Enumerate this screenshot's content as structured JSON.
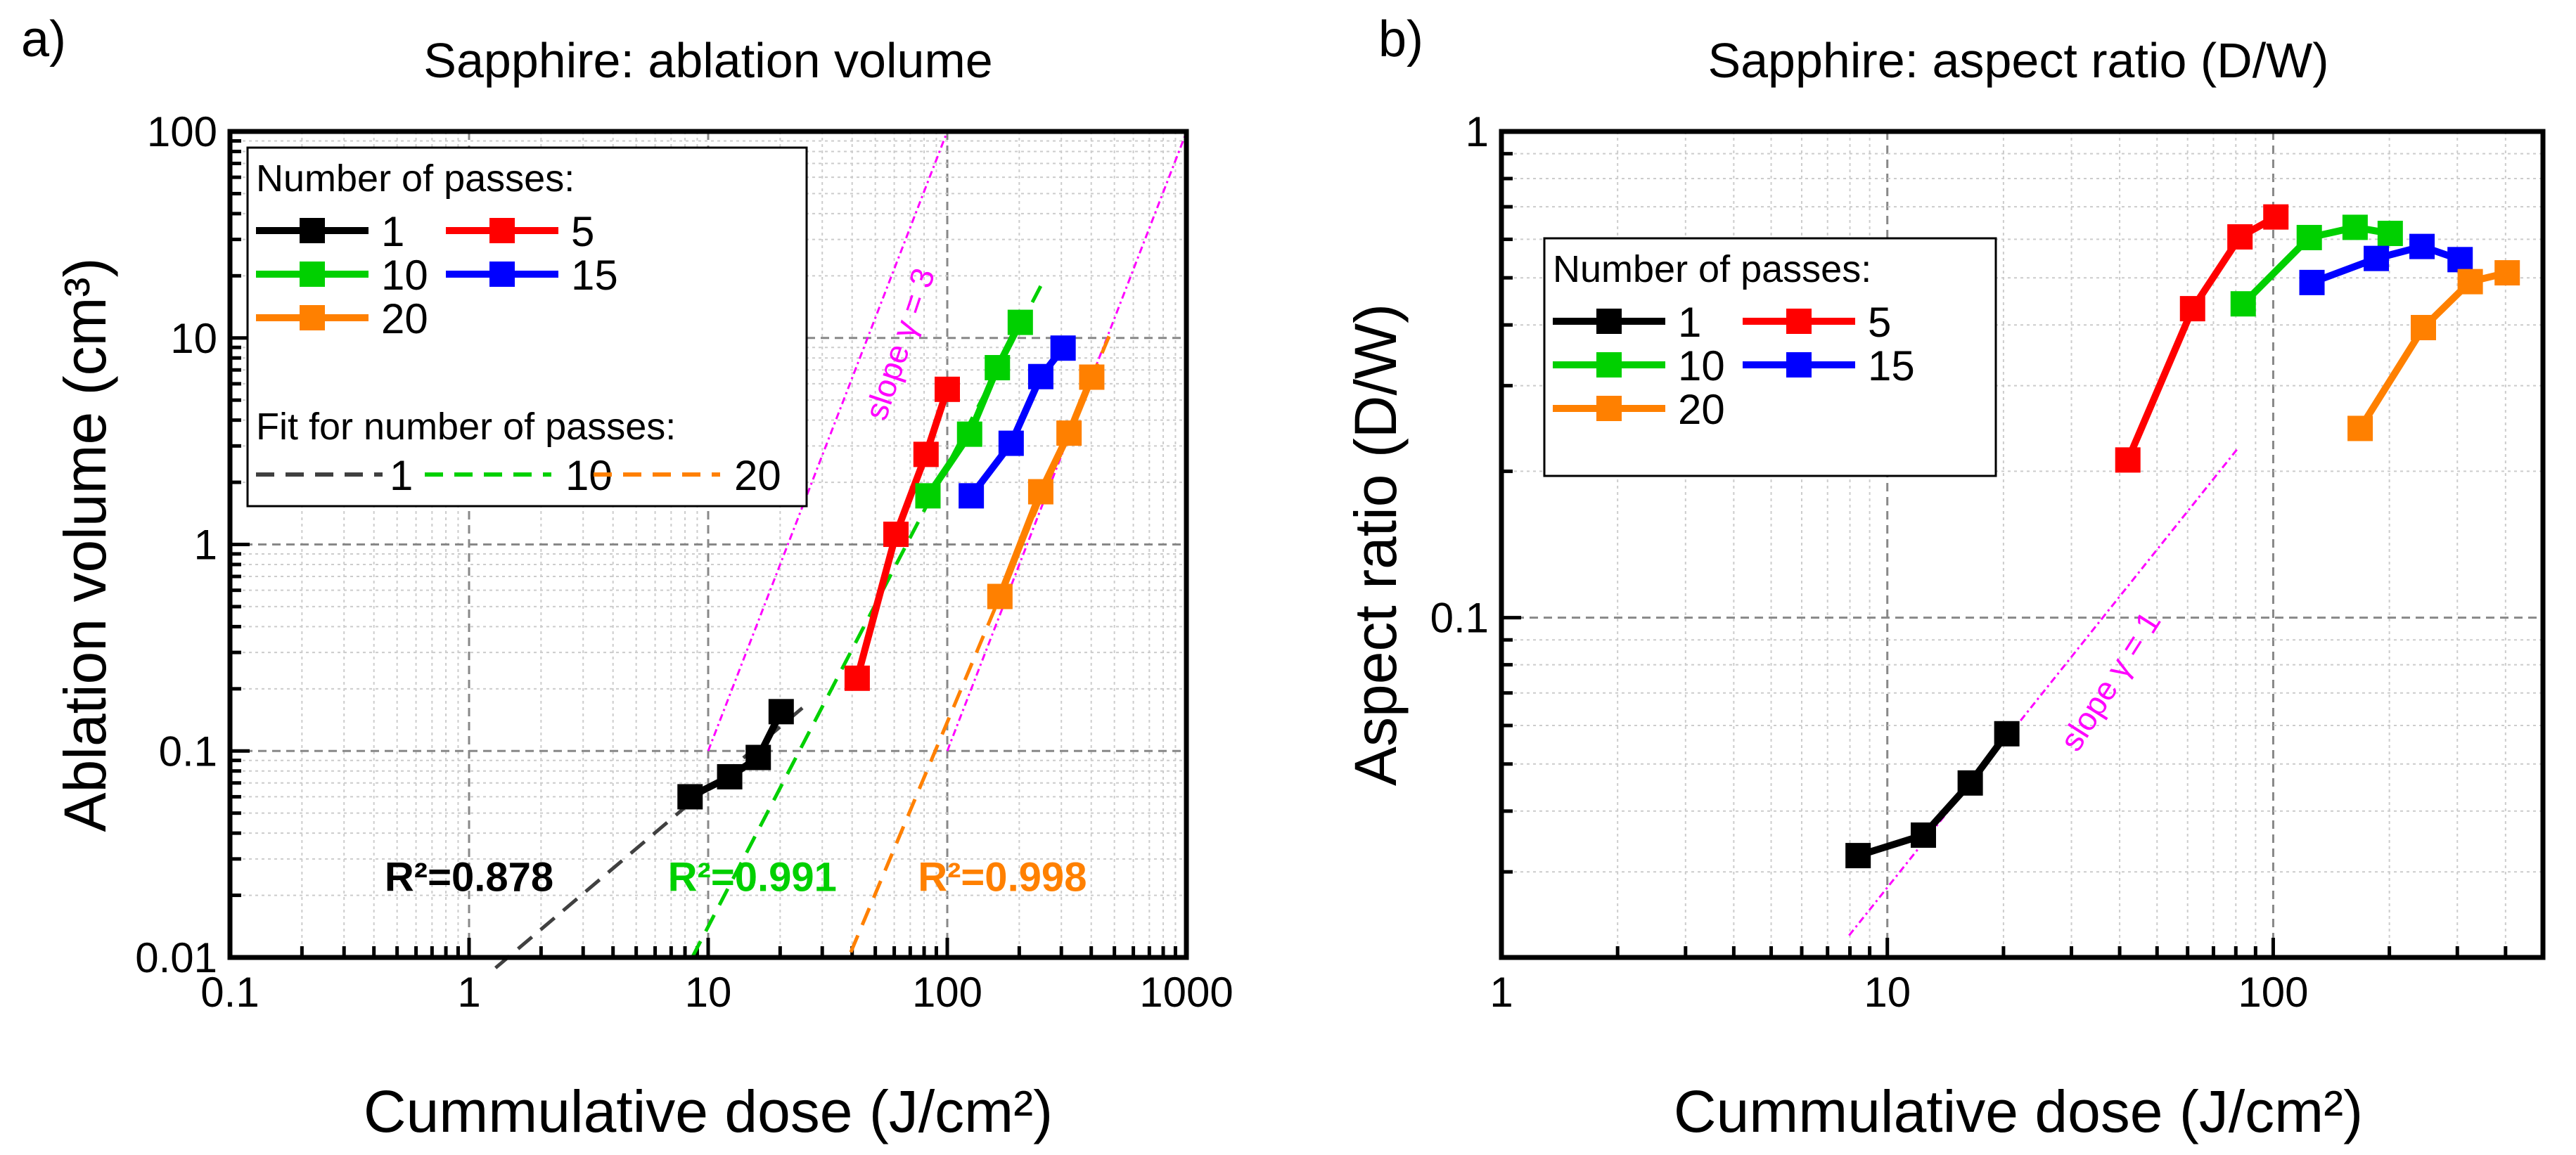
{
  "chart_data": [
    {
      "panel_label": "a)",
      "type": "line",
      "title": "Sapphire: ablation volume",
      "xlabel": "Cummulative dose (J/cm²)",
      "ylabel": "Ablation volume (cm³)",
      "xscale": "log",
      "yscale": "log",
      "xlim": [
        0.1,
        1000
      ],
      "ylim": [
        0.01,
        100
      ],
      "xticks": [
        "0.1",
        "1",
        "10",
        "100",
        "1000"
      ],
      "yticks": [
        "0.01",
        "0.1",
        "1",
        "10",
        "100"
      ],
      "grid": true,
      "legend": {
        "placement": "top-left",
        "title": "Number of passes:",
        "fit_title": "Fit for number of passes:",
        "fit_entries": [
          "1",
          "10",
          "20"
        ]
      },
      "series": [
        {
          "name": "1",
          "color": "#000000",
          "x": [
            8.4,
            12.3,
            16.2,
            20.2
          ],
          "y": [
            0.06,
            0.075,
            0.093,
            0.155
          ]
        },
        {
          "name": "5",
          "color": "#ff0000",
          "x": [
            42,
            61,
            81.5,
            100
          ],
          "y": [
            0.225,
            1.12,
            2.73,
            5.64
          ]
        },
        {
          "name": "10",
          "color": "#00d000",
          "x": [
            83,
            124,
            162,
            202
          ],
          "y": [
            1.72,
            3.42,
            7.18,
            11.9
          ]
        },
        {
          "name": "15",
          "color": "#0000ff",
          "x": [
            126,
            185,
            246,
            305
          ],
          "y": [
            1.72,
            3.09,
            6.5,
            8.93
          ]
        },
        {
          "name": "20",
          "color": "#ff8000",
          "x": [
            166,
            246,
            323,
            402
          ],
          "y": [
            0.56,
            1.8,
            3.46,
            6.46
          ]
        }
      ],
      "fits": [
        {
          "name": "1",
          "color": "#404040",
          "x": [
            1.29,
            25
          ],
          "y": [
            0.0089,
            0.163
          ],
          "r2_label": "R²=0.878",
          "r2_color": "#000000",
          "label_at": [
            1.0,
            0.021
          ]
        },
        {
          "name": "10",
          "color": "#00d000",
          "x": [
            8.57,
            250
          ],
          "y": [
            0.01,
            18.5
          ],
          "r2_label": "R²=0.991",
          "r2_color": "#00d000",
          "label_at": [
            15.3,
            0.021
          ]
        },
        {
          "name": "20",
          "color": "#ff8000",
          "x": [
            39.5,
            493
          ],
          "y": [
            0.0106,
            11.3
          ],
          "r2_label": "R²=0.998",
          "r2_color": "#ff8000",
          "label_at": [
            170,
            0.021
          ]
        }
      ],
      "reference_lines": [
        {
          "color": "#ff00ff",
          "x": [
            10,
            100
          ],
          "y": [
            0.1,
            100
          ]
        },
        {
          "color": "#ff00ff",
          "x": [
            100,
            986
          ],
          "y": [
            0.1,
            95
          ]
        }
      ],
      "annotations": [
        {
          "text": "slope γ = 3",
          "color": "#ff00ff",
          "at": [
            70,
            9
          ],
          "angle": -71.5
        }
      ]
    },
    {
      "panel_label": "b)",
      "type": "line",
      "title": "Sapphire: aspect ratio (D/W)",
      "xlabel": "Cummulative dose (J/cm²)",
      "ylabel": "Aspect ratio (D/W)",
      "xscale": "log",
      "yscale": "log",
      "xlim": [
        1,
        500
      ],
      "ylim": [
        0.02,
        1
      ],
      "xticks": [
        "1",
        "10",
        "100"
      ],
      "yticks": [
        "0.1",
        "1"
      ],
      "grid": true,
      "legend": {
        "placement": "top-left",
        "title": "Number of passes:"
      },
      "series": [
        {
          "name": "1",
          "color": "#000000",
          "x": [
            8.4,
            12.4,
            16.4,
            20.4
          ],
          "y": [
            0.0324,
            0.0357,
            0.0457,
            0.0577
          ]
        },
        {
          "name": "5",
          "color": "#ff0000",
          "x": [
            42,
            61.8,
            82,
            101.6
          ],
          "y": [
            0.211,
            0.432,
            0.607,
            0.667
          ]
        },
        {
          "name": "10",
          "color": "#00d000",
          "x": [
            83.6,
            124,
            163,
            201
          ],
          "y": [
            0.442,
            0.605,
            0.635,
            0.617
          ]
        },
        {
          "name": "15",
          "color": "#0000ff",
          "x": [
            126,
            185,
            243,
            305
          ],
          "y": [
            0.489,
            0.548,
            0.58,
            0.545
          ]
        },
        {
          "name": "20",
          "color": "#ff8000",
          "x": [
            168,
            245,
            324,
            404
          ],
          "y": [
            0.245,
            0.395,
            0.491,
            0.512
          ]
        }
      ],
      "reference_lines": [
        {
          "color": "#ff00ff",
          "x": [
            7.96,
            81
          ],
          "y": [
            0.0222,
            0.223
          ]
        }
      ],
      "annotations": [
        {
          "text": "slope γ = 1",
          "color": "#ff00ff",
          "at": [
            40,
            0.072
          ],
          "angle": -57.6
        }
      ]
    }
  ]
}
